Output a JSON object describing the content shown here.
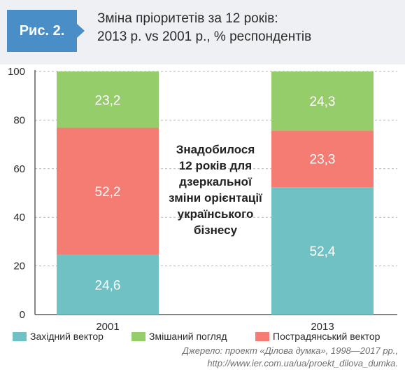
{
  "header": {
    "figure_label": "Рис. 2.",
    "title_line1": "Зміна пріоритетів  за 12 років:",
    "title_line2": "2013 р. vs 2001 р., % респондентів"
  },
  "colors": {
    "western": "#70c1c4",
    "mixed": "#95cd6b",
    "post_soviet": "#f47c72",
    "header_bg": "#eef0f3",
    "tag_bg": "#4a8ec8"
  },
  "chart_data": {
    "type": "bar",
    "stacked": true,
    "categories": [
      "2001",
      "2013"
    ],
    "series": [
      {
        "name": "Західний вектор",
        "values": [
          24.6,
          52.4
        ]
      },
      {
        "name": "Пострадянський вектор",
        "values": [
          52.2,
          23.3
        ]
      },
      {
        "name": "Змішаний погляд",
        "values": [
          23.2,
          24.3
        ]
      }
    ],
    "value_labels": [
      [
        "24,6",
        "52,4"
      ],
      [
        "52,2",
        "23,3"
      ],
      [
        "23,2",
        "24,3"
      ]
    ],
    "ylim": [
      0,
      100
    ],
    "yticks": [
      "0",
      "20",
      "40",
      "60",
      "80",
      "100"
    ],
    "grid": true,
    "legend_position": "bottom",
    "annotation": [
      "Знадобилося",
      "12 років для",
      "дзеркальної",
      "зміни орієнтації",
      "українського",
      "бізнесу"
    ]
  },
  "legend": {
    "western": "Західний вектор",
    "mixed": "Змішаний погляд",
    "post_soviet": "Пострадянський вектор"
  },
  "source": {
    "line1": "Джерело: проект «Ділова думка», 1998—2017 рр.,",
    "line2": "http://www.ier.com.ua/ua/proekt_dilova_dumka."
  }
}
